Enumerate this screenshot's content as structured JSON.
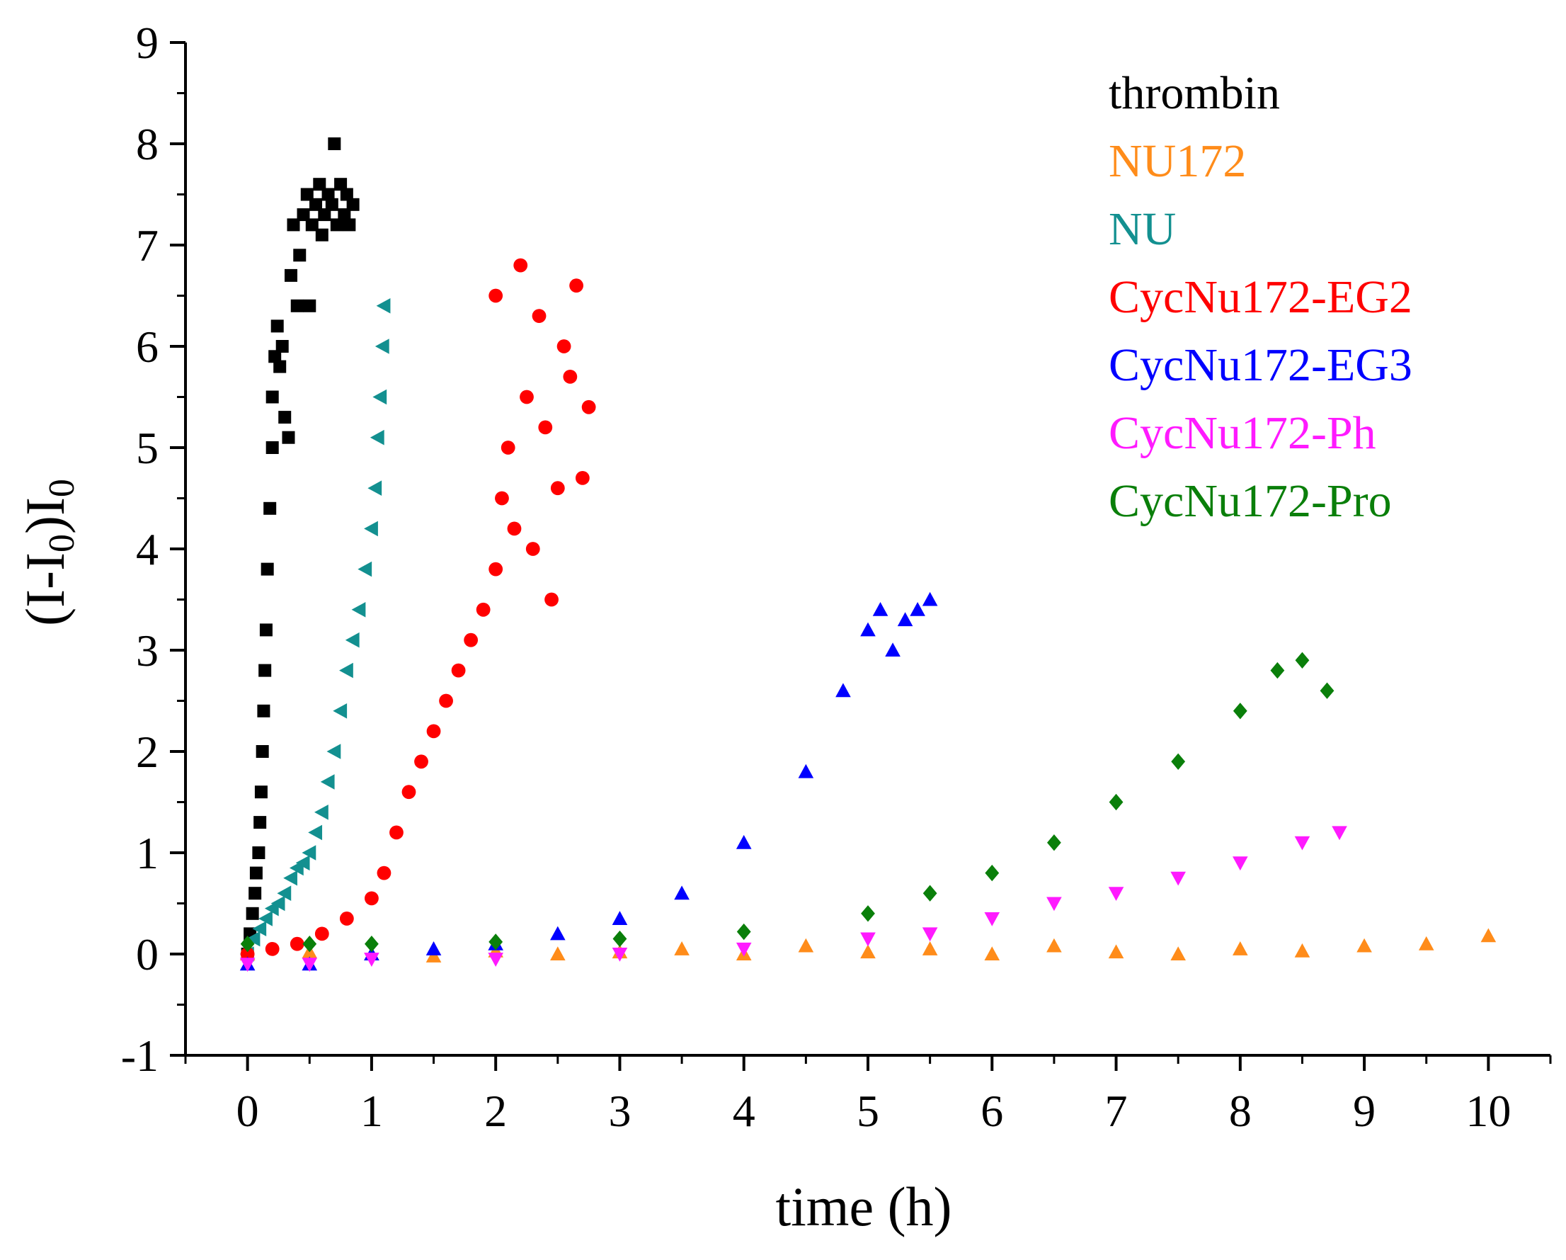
{
  "chart_data": {
    "type": "scatter",
    "xlabel": "time (h)",
    "ylabel": "(I-I",
    "ylabel_sub1": "0",
    "ylabel_mid": ")I",
    "ylabel_sub2": "0",
    "xlim": [
      -0.5,
      10.5
    ],
    "ylim": [
      -1,
      9
    ],
    "x_ticks": [
      0,
      1,
      2,
      3,
      4,
      5,
      6,
      7,
      8,
      9,
      10
    ],
    "y_ticks": [
      -1,
      0,
      1,
      2,
      3,
      4,
      5,
      6,
      7,
      8,
      9
    ],
    "grid": false,
    "legend_position": "top-right",
    "series": [
      {
        "name": "thrombin",
        "color": "#000000",
        "marker": "square",
        "points": [
          [
            0,
            0
          ],
          [
            0.02,
            0.2
          ],
          [
            0.04,
            0.4
          ],
          [
            0.06,
            0.6
          ],
          [
            0.07,
            0.8
          ],
          [
            0.09,
            1.0
          ],
          [
            0.1,
            1.3
          ],
          [
            0.11,
            1.6
          ],
          [
            0.12,
            2.0
          ],
          [
            0.13,
            2.4
          ],
          [
            0.14,
            2.8
          ],
          [
            0.15,
            3.2
          ],
          [
            0.16,
            3.8
          ],
          [
            0.18,
            4.4
          ],
          [
            0.2,
            5.0
          ],
          [
            0.2,
            5.5
          ],
          [
            0.22,
            5.9
          ],
          [
            0.24,
            6.2
          ],
          [
            0.26,
            5.8
          ],
          [
            0.28,
            6.0
          ],
          [
            0.3,
            5.3
          ],
          [
            0.33,
            5.1
          ],
          [
            0.35,
            6.7
          ],
          [
            0.37,
            7.2
          ],
          [
            0.4,
            6.4
          ],
          [
            0.42,
            6.9
          ],
          [
            0.45,
            7.3
          ],
          [
            0.48,
            7.5
          ],
          [
            0.5,
            6.4
          ],
          [
            0.52,
            7.2
          ],
          [
            0.55,
            7.4
          ],
          [
            0.58,
            7.6
          ],
          [
            0.6,
            7.1
          ],
          [
            0.62,
            7.3
          ],
          [
            0.65,
            7.5
          ],
          [
            0.68,
            7.4
          ],
          [
            0.7,
            8.0
          ],
          [
            0.72,
            7.2
          ],
          [
            0.75,
            7.6
          ],
          [
            0.78,
            7.3
          ],
          [
            0.8,
            7.5
          ],
          [
            0.82,
            7.2
          ],
          [
            0.85,
            7.4
          ]
        ]
      },
      {
        "name": "NU172",
        "color": "#ff8c1a",
        "marker": "triangle-up",
        "points": [
          [
            0,
            0
          ],
          [
            0.5,
            0.02
          ],
          [
            1,
            0.0
          ],
          [
            1.5,
            -0.02
          ],
          [
            2,
            0.03
          ],
          [
            2.5,
            0.0
          ],
          [
            3,
            0.02
          ],
          [
            3.5,
            0.05
          ],
          [
            4,
            0.0
          ],
          [
            4.5,
            0.08
          ],
          [
            5,
            0.02
          ],
          [
            5.5,
            0.05
          ],
          [
            6,
            0.0
          ],
          [
            6.5,
            0.08
          ],
          [
            7,
            0.02
          ],
          [
            7.5,
            0.0
          ],
          [
            8,
            0.05
          ],
          [
            8.5,
            0.03
          ],
          [
            9,
            0.08
          ],
          [
            9.5,
            0.1
          ],
          [
            10,
            0.18
          ]
        ]
      },
      {
        "name": "NU",
        "color": "#139090",
        "marker": "triangle-left",
        "points": [
          [
            0,
            0
          ],
          [
            0.05,
            0.15
          ],
          [
            0.1,
            0.25
          ],
          [
            0.15,
            0.35
          ],
          [
            0.2,
            0.45
          ],
          [
            0.25,
            0.5
          ],
          [
            0.3,
            0.6
          ],
          [
            0.35,
            0.75
          ],
          [
            0.4,
            0.85
          ],
          [
            0.45,
            0.9
          ],
          [
            0.5,
            1.0
          ],
          [
            0.55,
            1.2
          ],
          [
            0.6,
            1.4
          ],
          [
            0.65,
            1.7
          ],
          [
            0.7,
            2.0
          ],
          [
            0.75,
            2.4
          ],
          [
            0.8,
            2.8
          ],
          [
            0.85,
            3.1
          ],
          [
            0.9,
            3.4
          ],
          [
            0.95,
            3.8
          ],
          [
            1.0,
            4.2
          ],
          [
            1.03,
            4.6
          ],
          [
            1.05,
            5.1
          ],
          [
            1.07,
            5.5
          ],
          [
            1.09,
            6.0
          ],
          [
            1.1,
            6.4
          ]
        ]
      },
      {
        "name": "CycNu172-EG2",
        "color": "#ff0000",
        "marker": "circle",
        "points": [
          [
            0,
            0
          ],
          [
            0.2,
            0.05
          ],
          [
            0.4,
            0.1
          ],
          [
            0.6,
            0.2
          ],
          [
            0.8,
            0.35
          ],
          [
            1.0,
            0.55
          ],
          [
            1.1,
            0.8
          ],
          [
            1.2,
            1.2
          ],
          [
            1.3,
            1.6
          ],
          [
            1.4,
            1.9
          ],
          [
            1.5,
            2.2
          ],
          [
            1.6,
            2.5
          ],
          [
            1.7,
            2.8
          ],
          [
            1.8,
            3.1
          ],
          [
            1.9,
            3.4
          ],
          [
            2.0,
            3.8
          ],
          [
            2.0,
            6.5
          ],
          [
            2.05,
            4.5
          ],
          [
            2.1,
            5.0
          ],
          [
            2.15,
            4.2
          ],
          [
            2.2,
            6.8
          ],
          [
            2.25,
            5.5
          ],
          [
            2.3,
            4.0
          ],
          [
            2.35,
            6.3
          ],
          [
            2.4,
            5.2
          ],
          [
            2.45,
            3.5
          ],
          [
            2.5,
            4.6
          ],
          [
            2.55,
            6.0
          ],
          [
            2.6,
            5.7
          ],
          [
            2.65,
            6.6
          ],
          [
            2.7,
            4.7
          ],
          [
            2.75,
            5.4
          ]
        ]
      },
      {
        "name": "CycNu172-EG3",
        "color": "#0000ff",
        "marker": "triangle-up",
        "points": [
          [
            0,
            -0.1
          ],
          [
            0.5,
            -0.1
          ],
          [
            1,
            0.0
          ],
          [
            1.5,
            0.05
          ],
          [
            2,
            0.1
          ],
          [
            2.5,
            0.2
          ],
          [
            3,
            0.35
          ],
          [
            3.5,
            0.6
          ],
          [
            4,
            1.1
          ],
          [
            4.5,
            1.8
          ],
          [
            4.8,
            2.6
          ],
          [
            5.0,
            3.2
          ],
          [
            5.1,
            3.4
          ],
          [
            5.2,
            3.0
          ],
          [
            5.3,
            3.3
          ],
          [
            5.4,
            3.4
          ],
          [
            5.5,
            3.5
          ]
        ]
      },
      {
        "name": "CycNu172-Ph",
        "color": "#ff1aff",
        "marker": "triangle-down",
        "points": [
          [
            0,
            -0.1
          ],
          [
            0.5,
            -0.1
          ],
          [
            1,
            -0.05
          ],
          [
            2,
            -0.05
          ],
          [
            3,
            0.0
          ],
          [
            4,
            0.05
          ],
          [
            5,
            0.15
          ],
          [
            5.5,
            0.2
          ],
          [
            6,
            0.35
          ],
          [
            6.5,
            0.5
          ],
          [
            7,
            0.6
          ],
          [
            7.5,
            0.75
          ],
          [
            8,
            0.9
          ],
          [
            8.5,
            1.1
          ],
          [
            8.8,
            1.2
          ]
        ]
      },
      {
        "name": "CycNu172-Pro",
        "color": "#0a7f0a",
        "marker": "diamond",
        "points": [
          [
            0,
            0.1
          ],
          [
            0.5,
            0.1
          ],
          [
            1,
            0.1
          ],
          [
            2,
            0.12
          ],
          [
            3,
            0.15
          ],
          [
            4,
            0.22
          ],
          [
            5,
            0.4
          ],
          [
            5.5,
            0.6
          ],
          [
            6,
            0.8
          ],
          [
            6.5,
            1.1
          ],
          [
            7,
            1.5
          ],
          [
            7.5,
            1.9
          ],
          [
            8,
            2.4
          ],
          [
            8.3,
            2.8
          ],
          [
            8.5,
            2.9
          ],
          [
            8.7,
            2.6
          ]
        ]
      }
    ]
  }
}
